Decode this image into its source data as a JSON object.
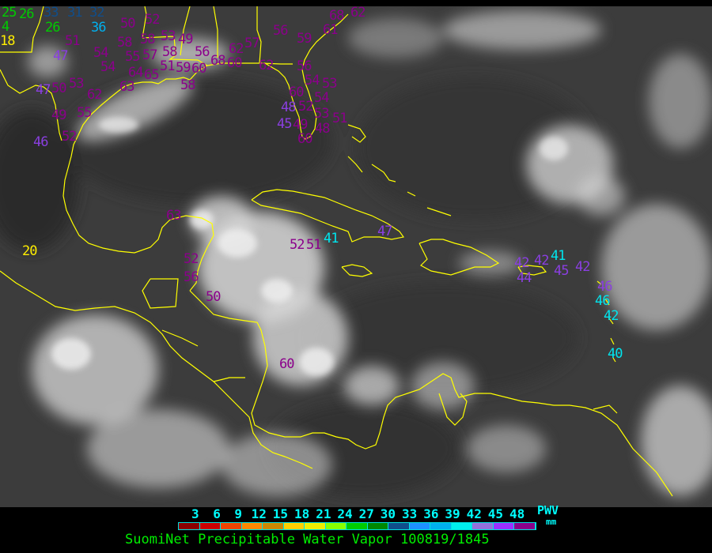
{
  "colors": {
    "coastline": "#ffff00",
    "purple": "#8b008b",
    "violet": "#8a3fe0",
    "cyan": "#00e5ee",
    "green": "#00cc00",
    "yellow": "#ffee00",
    "navy": "#104e8b",
    "sky": "#00b0ee"
  },
  "stations": [
    {
      "value": "25",
      "color": "green"
    },
    {
      "value": "26",
      "color": "green"
    },
    {
      "value": "4",
      "color": "green"
    },
    {
      "value": "26",
      "color": "green"
    },
    {
      "value": "18",
      "color": "yellow"
    },
    {
      "value": "20",
      "color": "yellow"
    },
    {
      "value": "33",
      "color": "navy"
    },
    {
      "value": "31",
      "color": "navy"
    },
    {
      "value": "32",
      "color": "navy"
    },
    {
      "value": "36",
      "color": "sky"
    },
    {
      "value": "50",
      "color": "purple"
    },
    {
      "value": "52",
      "color": "purple"
    },
    {
      "value": "51",
      "color": "purple"
    },
    {
      "value": "58",
      "color": "purple"
    },
    {
      "value": "58",
      "color": "purple"
    },
    {
      "value": "53",
      "color": "purple"
    },
    {
      "value": "49",
      "color": "purple"
    },
    {
      "value": "58",
      "color": "purple"
    },
    {
      "value": "56",
      "color": "purple"
    },
    {
      "value": "54",
      "color": "purple"
    },
    {
      "value": "55",
      "color": "purple"
    },
    {
      "value": "57",
      "color": "purple"
    },
    {
      "value": "51",
      "color": "purple"
    },
    {
      "value": "54",
      "color": "purple"
    },
    {
      "value": "64",
      "color": "purple"
    },
    {
      "value": "65",
      "color": "purple"
    },
    {
      "value": "59",
      "color": "purple"
    },
    {
      "value": "60",
      "color": "purple"
    },
    {
      "value": "58",
      "color": "purple"
    },
    {
      "value": "63",
      "color": "purple"
    },
    {
      "value": "62",
      "color": "purple"
    },
    {
      "value": "53",
      "color": "purple"
    },
    {
      "value": "50",
      "color": "purple"
    },
    {
      "value": "49",
      "color": "purple"
    },
    {
      "value": "55",
      "color": "purple"
    },
    {
      "value": "52",
      "color": "purple"
    },
    {
      "value": "68",
      "color": "purple"
    },
    {
      "value": "60",
      "color": "purple"
    },
    {
      "value": "62",
      "color": "purple"
    },
    {
      "value": "57",
      "color": "purple"
    },
    {
      "value": "62",
      "color": "purple"
    },
    {
      "value": "56",
      "color": "purple"
    },
    {
      "value": "59",
      "color": "purple"
    },
    {
      "value": "61",
      "color": "purple"
    },
    {
      "value": "68",
      "color": "purple"
    },
    {
      "value": "62",
      "color": "purple"
    },
    {
      "value": "56",
      "color": "purple"
    },
    {
      "value": "54",
      "color": "purple"
    },
    {
      "value": "53",
      "color": "purple"
    },
    {
      "value": "60",
      "color": "purple"
    },
    {
      "value": "54",
      "color": "purple"
    },
    {
      "value": "52",
      "color": "purple"
    },
    {
      "value": "53",
      "color": "purple"
    },
    {
      "value": "49",
      "color": "purple"
    },
    {
      "value": "60",
      "color": "purple"
    },
    {
      "value": "48",
      "color": "purple"
    },
    {
      "value": "51",
      "color": "purple"
    },
    {
      "value": "63",
      "color": "purple"
    },
    {
      "value": "52",
      "color": "purple"
    },
    {
      "value": "56",
      "color": "purple"
    },
    {
      "value": "50",
      "color": "purple"
    },
    {
      "value": "52",
      "color": "purple"
    },
    {
      "value": "51",
      "color": "purple"
    },
    {
      "value": "60",
      "color": "purple"
    },
    {
      "value": "47",
      "color": "violet"
    },
    {
      "value": "47",
      "color": "violet"
    },
    {
      "value": "46",
      "color": "violet"
    },
    {
      "value": "48",
      "color": "violet"
    },
    {
      "value": "45",
      "color": "violet"
    },
    {
      "value": "47",
      "color": "violet"
    },
    {
      "value": "42",
      "color": "violet"
    },
    {
      "value": "44",
      "color": "violet"
    },
    {
      "value": "42",
      "color": "violet"
    },
    {
      "value": "45",
      "color": "violet"
    },
    {
      "value": "42",
      "color": "violet"
    },
    {
      "value": "46",
      "color": "violet"
    },
    {
      "value": "41",
      "color": "cyan"
    },
    {
      "value": "41",
      "color": "cyan"
    },
    {
      "value": "46",
      "color": "cyan"
    },
    {
      "value": "42",
      "color": "cyan"
    },
    {
      "value": "40",
      "color": "cyan"
    }
  ],
  "legend": {
    "ticks": [
      "3",
      "6",
      "9",
      "12",
      "15",
      "18",
      "21",
      "24",
      "27",
      "30",
      "33",
      "36",
      "39",
      "42",
      "45",
      "48"
    ],
    "swatches": [
      "#8b0000",
      "#cc0000",
      "#ee4400",
      "#ff8800",
      "#cc8800",
      "#ffd000",
      "#eeee00",
      "#88ff00",
      "#00cc00",
      "#008800",
      "#104e8b",
      "#1e90ff",
      "#00b0ee",
      "#00eeee",
      "#9370db",
      "#9b30ff",
      "#8b008b"
    ],
    "quantity": "PWV",
    "unit": "mm",
    "title": "SuomiNet Precipitable Water Vapor 100819/1845"
  }
}
